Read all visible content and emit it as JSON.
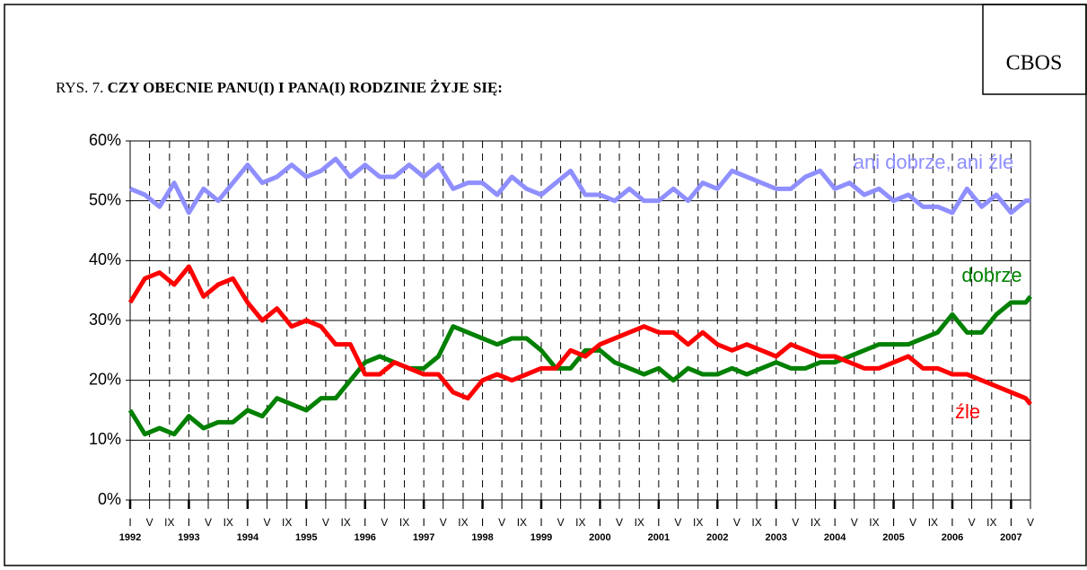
{
  "chart_data": {
    "type": "line",
    "source": "CBOS",
    "figure_label": "RYS. 7.",
    "title": "CZY OBECNIE PANU(I) I PANA(I) RODZINIE ŻYJE SIĘ:",
    "x": [
      1992,
      1992.25,
      1992.5,
      1992.75,
      1993,
      1993.25,
      1993.5,
      1993.75,
      1994,
      1994.25,
      1994.5,
      1994.75,
      1995,
      1995.25,
      1995.5,
      1995.75,
      1996,
      1996.25,
      1996.5,
      1996.75,
      1997,
      1997.25,
      1997.5,
      1997.75,
      1998,
      1998.25,
      1998.5,
      1998.75,
      1999,
      1999.25,
      1999.5,
      1999.75,
      2000,
      2000.25,
      2000.5,
      2000.75,
      2001,
      2001.25,
      2001.5,
      2001.75,
      2002,
      2002.25,
      2002.5,
      2002.75,
      2003,
      2003.25,
      2003.5,
      2003.75,
      2004,
      2004.25,
      2004.5,
      2004.75,
      2005,
      2005.25,
      2005.5,
      2005.75,
      2006,
      2006.25,
      2006.5,
      2006.75,
      2007,
      2007.25,
      2007.33
    ],
    "series": [
      {
        "name": "ani dobrze, ani źle",
        "color": "#8f8fff",
        "values": [
          52,
          51,
          49,
          53,
          48,
          52,
          50,
          53,
          56,
          53,
          54,
          56,
          54,
          55,
          57,
          54,
          56,
          54,
          54,
          56,
          54,
          56,
          52,
          53,
          53,
          51,
          54,
          52,
          51,
          53,
          55,
          51,
          51,
          50,
          52,
          50,
          50,
          52,
          50,
          53,
          52,
          55,
          54,
          53,
          52,
          52,
          54,
          55,
          52,
          53,
          51,
          52,
          50,
          51,
          49,
          49,
          48,
          52,
          49,
          51,
          48,
          50,
          50
        ]
      },
      {
        "name": "dobrze",
        "color": "#008000",
        "values": [
          15,
          11,
          12,
          11,
          14,
          12,
          13,
          13,
          15,
          14,
          17,
          16,
          15,
          17,
          17,
          20,
          23,
          24,
          23,
          22,
          22,
          24,
          29,
          28,
          27,
          26,
          27,
          27,
          25,
          22,
          22,
          25,
          25,
          23,
          22,
          21,
          22,
          20,
          22,
          21,
          21,
          22,
          21,
          22,
          23,
          22,
          22,
          23,
          23,
          24,
          25,
          26,
          26,
          26,
          27,
          28,
          31,
          28,
          28,
          31,
          33,
          33,
          34
        ]
      },
      {
        "name": "źle",
        "color": "#ff0000",
        "values": [
          33,
          37,
          38,
          36,
          39,
          34,
          36,
          37,
          33,
          30,
          32,
          29,
          30,
          29,
          26,
          26,
          21,
          21,
          23,
          22,
          21,
          21,
          18,
          17,
          20,
          21,
          20,
          21,
          22,
          22,
          25,
          24,
          26,
          27,
          28,
          29,
          28,
          28,
          26,
          28,
          26,
          25,
          26,
          25,
          24,
          26,
          25,
          24,
          24,
          23,
          22,
          22,
          23,
          24,
          22,
          22,
          21,
          21,
          20,
          19,
          18,
          17,
          16
        ]
      }
    ],
    "xlim": [
      1992,
      2007.33
    ],
    "xticks": [
      {
        "value": 1992,
        "label": "I"
      },
      {
        "value": 1992.33,
        "label": "V"
      },
      {
        "value": 1992.67,
        "label": "IX"
      },
      {
        "value": 1993,
        "label": "I"
      },
      {
        "value": 1993.33,
        "label": "V"
      },
      {
        "value": 1993.67,
        "label": "IX"
      },
      {
        "value": 1994,
        "label": "I"
      },
      {
        "value": 1994.33,
        "label": "V"
      },
      {
        "value": 1994.67,
        "label": "IX"
      },
      {
        "value": 1995,
        "label": "I"
      },
      {
        "value": 1995.33,
        "label": "V"
      },
      {
        "value": 1995.67,
        "label": "IX"
      },
      {
        "value": 1996,
        "label": "I"
      },
      {
        "value": 1996.33,
        "label": "V"
      },
      {
        "value": 1996.67,
        "label": "IX"
      },
      {
        "value": 1997,
        "label": "I"
      },
      {
        "value": 1997.33,
        "label": "V"
      },
      {
        "value": 1997.67,
        "label": "IX"
      },
      {
        "value": 1998,
        "label": "I"
      },
      {
        "value": 1998.33,
        "label": "V"
      },
      {
        "value": 1998.67,
        "label": "IX"
      },
      {
        "value": 1999,
        "label": "I"
      },
      {
        "value": 1999.33,
        "label": "V"
      },
      {
        "value": 1999.67,
        "label": "IX"
      },
      {
        "value": 2000,
        "label": "I"
      },
      {
        "value": 2000.33,
        "label": "V"
      },
      {
        "value": 2000.67,
        "label": "IX"
      },
      {
        "value": 2001,
        "label": "I"
      },
      {
        "value": 2001.33,
        "label": "V"
      },
      {
        "value": 2001.67,
        "label": "IX"
      },
      {
        "value": 2002,
        "label": "I"
      },
      {
        "value": 2002.33,
        "label": "V"
      },
      {
        "value": 2002.67,
        "label": "IX"
      },
      {
        "value": 2003,
        "label": "I"
      },
      {
        "value": 2003.33,
        "label": "V"
      },
      {
        "value": 2003.67,
        "label": "IX"
      },
      {
        "value": 2004,
        "label": "I"
      },
      {
        "value": 2004.33,
        "label": "V"
      },
      {
        "value": 2004.67,
        "label": "IX"
      },
      {
        "value": 2005,
        "label": "I"
      },
      {
        "value": 2005.33,
        "label": "V"
      },
      {
        "value": 2005.67,
        "label": "IX"
      },
      {
        "value": 2006,
        "label": "I"
      },
      {
        "value": 2006.33,
        "label": "V"
      },
      {
        "value": 2006.67,
        "label": "IX"
      },
      {
        "value": 2007,
        "label": "I"
      },
      {
        "value": 2007.33,
        "label": "V"
      }
    ],
    "year_labels": [
      1992,
      1993,
      1994,
      1995,
      1996,
      1997,
      1998,
      1999,
      2000,
      2001,
      2002,
      2003,
      2004,
      2005,
      2006,
      2007
    ],
    "ylim": [
      0,
      60
    ],
    "yticks": [
      {
        "value": 0,
        "label": "0%"
      },
      {
        "value": 10,
        "label": "10%"
      },
      {
        "value": 20,
        "label": "20%"
      },
      {
        "value": 30,
        "label": "30%"
      },
      {
        "value": 40,
        "label": "40%"
      },
      {
        "value": 50,
        "label": "50%"
      },
      {
        "value": 60,
        "label": "60%"
      }
    ],
    "grid": true
  }
}
